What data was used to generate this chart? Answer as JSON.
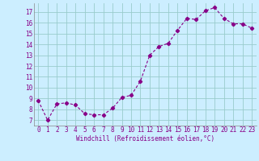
{
  "x": [
    0,
    1,
    2,
    3,
    4,
    5,
    6,
    7,
    8,
    9,
    10,
    11,
    12,
    13,
    14,
    15,
    16,
    17,
    18,
    19,
    20,
    21,
    22,
    23
  ],
  "y": [
    8.8,
    7.0,
    8.5,
    8.6,
    8.4,
    7.6,
    7.5,
    7.5,
    8.1,
    9.1,
    9.3,
    10.6,
    13.0,
    13.8,
    14.1,
    15.3,
    16.4,
    16.3,
    17.1,
    17.4,
    16.4,
    15.9,
    15.9,
    15.5
  ],
  "xlim": [
    -0.5,
    23.5
  ],
  "ylim": [
    6.5,
    17.8
  ],
  "yticks": [
    7,
    8,
    9,
    10,
    11,
    12,
    13,
    14,
    15,
    16,
    17
  ],
  "xticks": [
    0,
    1,
    2,
    3,
    4,
    5,
    6,
    7,
    8,
    9,
    10,
    11,
    12,
    13,
    14,
    15,
    16,
    17,
    18,
    19,
    20,
    21,
    22,
    23
  ],
  "xlabel": "Windchill (Refroidissement éolien,°C)",
  "line_color": "#880088",
  "marker": "D",
  "marker_size": 2.2,
  "bg_color": "#cceeff",
  "grid_color": "#99cccc",
  "tick_color": "#880088",
  "label_color": "#880088",
  "font_family": "monospace",
  "tick_fontsize": 5.5,
  "label_fontsize": 5.5
}
